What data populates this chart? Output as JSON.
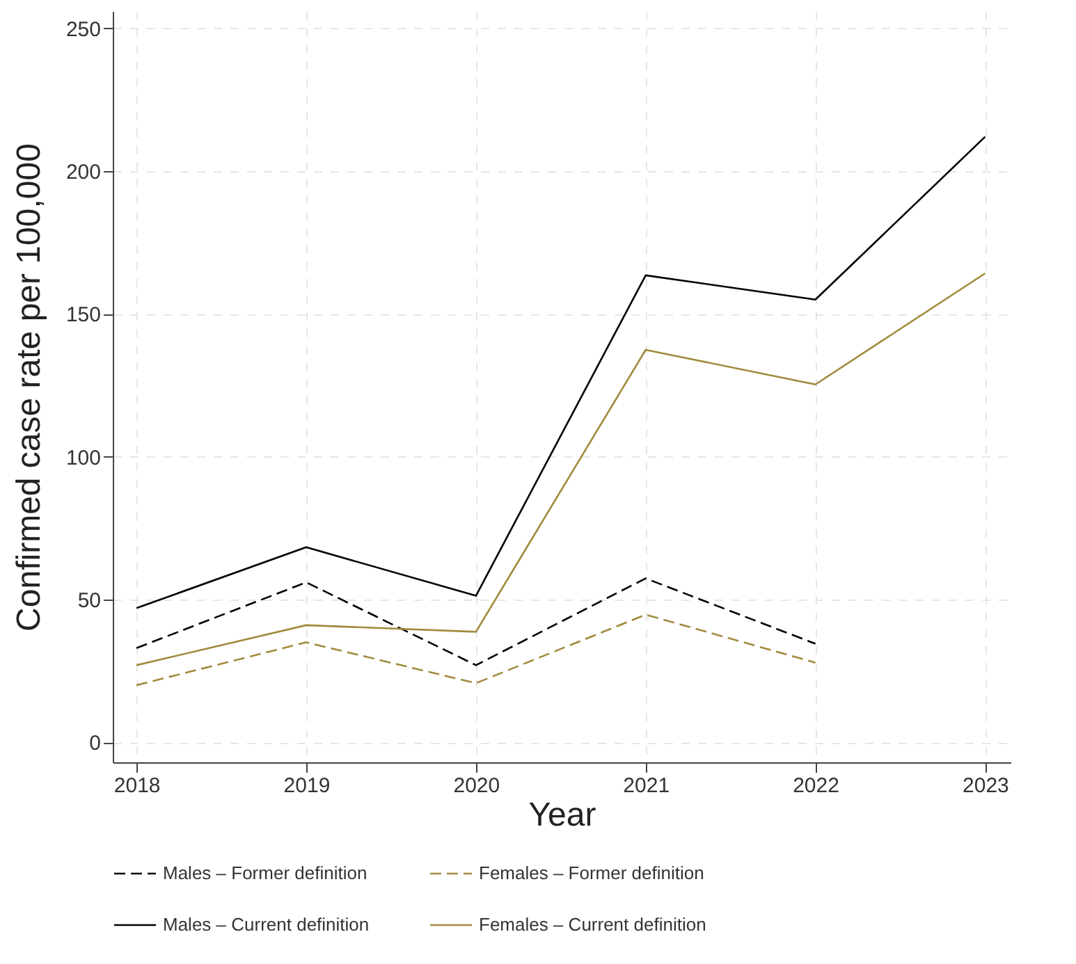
{
  "chart_data": {
    "type": "line",
    "xlabel": "Year",
    "ylabel": "Confirmed case rate per 100,000",
    "x": [
      2018,
      2019,
      2020,
      2021,
      2022,
      2023
    ],
    "series": [
      {
        "name": "Males – Former definition",
        "color": "#000000",
        "line_style": "dashed",
        "values": [
          33,
          56,
          27,
          57.4,
          34.5,
          null
        ]
      },
      {
        "name": "Females – Former definition",
        "color": "#a08a3c",
        "line_style": "dashed",
        "values": [
          20,
          35,
          20.7,
          44.7,
          27.9,
          null
        ]
      },
      {
        "name": "Males – Current definition",
        "color": "#000000",
        "line_style": "solid",
        "values": [
          47,
          68.3,
          51.3,
          163.5,
          155,
          212
        ]
      },
      {
        "name": "Females – Current definition",
        "color": "#a08a3c",
        "line_style": "solid",
        "values": [
          27,
          41,
          38.7,
          137.4,
          125.3,
          164.2
        ]
      }
    ],
    "xlim": [
      2017.86,
      2023.15
    ],
    "xticks": [
      2018,
      2019,
      2020,
      2021,
      2022,
      2023
    ],
    "ylim": [
      -7,
      256
    ],
    "yticks": [
      0,
      50,
      100,
      150,
      200,
      250
    ],
    "grid": true,
    "legend": "bottom",
    "marker": "none"
  }
}
